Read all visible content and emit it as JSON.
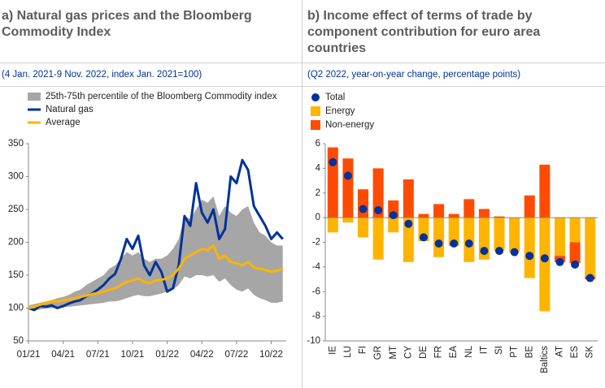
{
  "chart_data": [
    {
      "type": "line",
      "title": "a) Natural gas prices and the Bloomberg Commodity Index",
      "subtitle": "(4 Jan. 2021-9 Nov. 2022, index Jan. 2021=100)",
      "x": [
        0,
        0.5,
        1,
        1.5,
        2,
        2.5,
        3,
        3.5,
        4,
        4.5,
        5,
        5.5,
        6,
        6.5,
        7,
        7.5,
        8,
        8.5,
        9,
        9.5,
        10,
        10.5,
        11,
        11.5,
        12,
        12.5,
        13,
        13.5,
        14,
        14.5,
        15,
        15.5,
        16,
        16.5,
        17,
        17.5,
        18,
        18.5,
        19,
        19.5,
        20,
        20.5,
        21,
        21.5,
        22
      ],
      "xlim": [
        0,
        22.3
      ],
      "xticks": [
        {
          "value": 0,
          "label": "01/21"
        },
        {
          "value": 3,
          "label": "04/21"
        },
        {
          "value": 6,
          "label": "07/21"
        },
        {
          "value": 9,
          "label": "10/21"
        },
        {
          "value": 12,
          "label": "01/22"
        },
        {
          "value": 15,
          "label": "04/22"
        },
        {
          "value": 18,
          "label": "07/22"
        },
        {
          "value": 21,
          "label": "10/22"
        }
      ],
      "ylim": [
        50,
        350
      ],
      "yticks": [
        50,
        100,
        150,
        200,
        250,
        300,
        350
      ],
      "series": [
        {
          "name": "25th-75th percentile of the Bloomberg Commodity index",
          "color": "#a6a6a6",
          "low": [
            98,
            96,
            98,
            99,
            100,
            100,
            101,
            102,
            103,
            104,
            105,
            106,
            107,
            108,
            110,
            110,
            112,
            115,
            118,
            120,
            118,
            118,
            120,
            122,
            125,
            128,
            135,
            148,
            145,
            150,
            150,
            148,
            150,
            140,
            145,
            135,
            128,
            125,
            130,
            120,
            115,
            112,
            108,
            108,
            110
          ],
          "high": [
            104,
            106,
            108,
            110,
            112,
            115,
            117,
            120,
            125,
            128,
            135,
            140,
            145,
            150,
            160,
            165,
            175,
            185,
            180,
            185,
            175,
            170,
            175,
            175,
            180,
            190,
            205,
            240,
            235,
            250,
            265,
            260,
            270,
            240,
            255,
            245,
            240,
            250,
            255,
            230,
            215,
            210,
            200,
            195,
            195
          ]
        },
        {
          "name": "Natural gas",
          "color": "#003299",
          "values": [
            100,
            97,
            103,
            102,
            104,
            100,
            103,
            107,
            110,
            112,
            118,
            122,
            128,
            135,
            145,
            152,
            175,
            205,
            190,
            210,
            165,
            150,
            170,
            155,
            125,
            130,
            165,
            240,
            225,
            290,
            245,
            230,
            250,
            205,
            220,
            300,
            290,
            325,
            310,
            255,
            240,
            225,
            205,
            215,
            205
          ]
        },
        {
          "name": "Average",
          "color": "#ffb400",
          "values": [
            100,
            102,
            105,
            108,
            110,
            110,
            112,
            113,
            115,
            117,
            119,
            121,
            123,
            125,
            128,
            130,
            135,
            140,
            142,
            145,
            140,
            138,
            142,
            143,
            145,
            150,
            160,
            175,
            180,
            185,
            190,
            188,
            195,
            175,
            180,
            170,
            168,
            165,
            170,
            162,
            160,
            158,
            155,
            157,
            160
          ]
        }
      ]
    },
    {
      "type": "bar",
      "title": "b) Income effect of terms of trade by component contribution for euro area countries",
      "subtitle": "(Q2 2022, year-on-year change, percentage points)",
      "categories": [
        "IE",
        "LU",
        "FI",
        "GR",
        "MT",
        "CY",
        "DE",
        "FR",
        "EA",
        "NL",
        "IT",
        "SI",
        "PT",
        "BE",
        "Baltics",
        "AT",
        "ES",
        "SK"
      ],
      "ylim": [
        -10,
        6
      ],
      "yticks": [
        -10,
        -8,
        -6,
        -4,
        -2,
        0,
        2,
        4,
        6
      ],
      "series": [
        {
          "name": "Total",
          "color": "#003299",
          "mark": "point",
          "values": [
            4.5,
            3.4,
            0.7,
            0.6,
            0.2,
            -0.5,
            -1.6,
            -2.1,
            -2.1,
            -2.1,
            -2.7,
            -2.7,
            -2.8,
            -3.1,
            -3.3,
            -3.6,
            -3.8,
            -4.9
          ]
        },
        {
          "name": "Energy",
          "color": "#ffb400",
          "values": [
            -1.2,
            -0.4,
            -1.6,
            -3.4,
            -1.2,
            -3.6,
            -1.9,
            -3.2,
            -2.3,
            -3.6,
            -3.4,
            -2.7,
            -2.8,
            -4.9,
            -7.6,
            -3.1,
            -2.0,
            -4.8
          ]
        },
        {
          "name": "Non-energy",
          "color": "#ff4b00",
          "values": [
            5.7,
            4.8,
            2.3,
            4.0,
            1.4,
            3.1,
            0.3,
            1.1,
            0.3,
            1.5,
            0.7,
            0.1,
            0.0,
            1.8,
            4.3,
            -0.5,
            -1.7,
            -0.2
          ]
        }
      ]
    }
  ]
}
